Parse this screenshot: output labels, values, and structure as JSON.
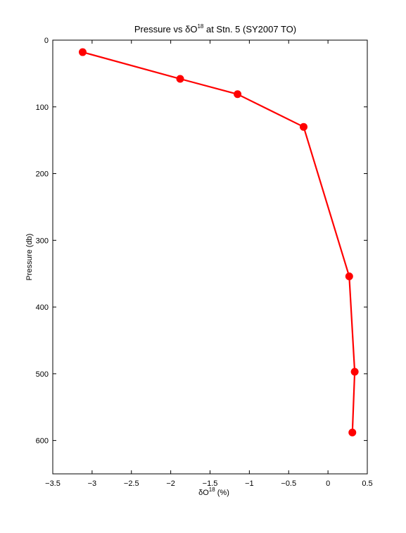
{
  "chart_data": {
    "type": "line",
    "title": "Pressure vs δO at Stn. 5 (SY2007 TO)",
    "title_parts": {
      "before": "Pressure vs δO",
      "sup": "18",
      "after": " at Stn. 5 (SY2007 TO)"
    },
    "xlabel": "δO (%)",
    "xlabel_parts": {
      "before": "δO",
      "sup": "18",
      "after": " (%)"
    },
    "ylabel": "Pressure (db)",
    "xlim": [
      -3.5,
      0.5
    ],
    "ylim": [
      0,
      650
    ],
    "y_reversed": true,
    "x_ticks": [
      -3.5,
      -3,
      -2.5,
      -2,
      -1.5,
      -1,
      -0.5,
      0,
      0.5
    ],
    "x_tick_labels": [
      "−3.5",
      "−3",
      "−2.5",
      "−2",
      "−1.5",
      "−1",
      "−0.5",
      "0",
      "0.5"
    ],
    "y_ticks": [
      0,
      100,
      200,
      300,
      400,
      500,
      600
    ],
    "y_tick_labels": [
      "0",
      "100",
      "200",
      "300",
      "400",
      "500",
      "600"
    ],
    "grid": false,
    "series": [
      {
        "color": "#ff0000",
        "marker": "circle",
        "points": [
          {
            "x": -3.12,
            "y": 18
          },
          {
            "x": -1.88,
            "y": 58
          },
          {
            "x": -1.15,
            "y": 81
          },
          {
            "x": -0.31,
            "y": 130
          },
          {
            "x": 0.27,
            "y": 354
          },
          {
            "x": 0.34,
            "y": 497
          },
          {
            "x": 0.31,
            "y": 588
          }
        ]
      }
    ]
  }
}
